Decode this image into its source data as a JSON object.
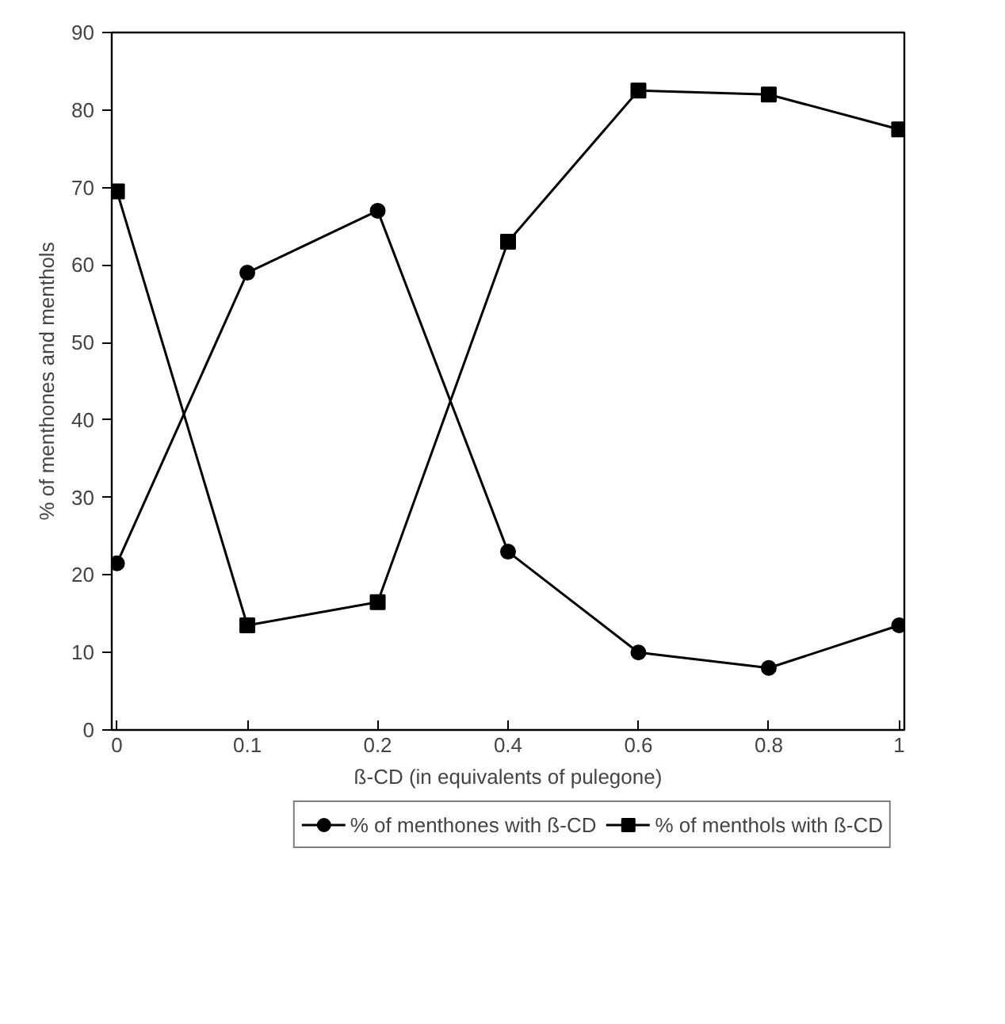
{
  "chart_data": {
    "type": "line",
    "xlabel": "ß-CD (in equivalents of pulegone)",
    "ylabel": "% of menthones and menthols",
    "categories": [
      "0",
      "0.1",
      "0.2",
      "0.4",
      "0.6",
      "0.8",
      "1"
    ],
    "series": [
      {
        "name": "% of menthones with ß-CD",
        "color": "#000000",
        "marker": "circle",
        "values": [
          21.5,
          59,
          67,
          23,
          10,
          8,
          13.5
        ]
      },
      {
        "name": "% of menthols with ß-CD",
        "color": "#000000",
        "marker": "square",
        "values": [
          69.5,
          13.5,
          16.5,
          63,
          82.5,
          82,
          77.5
        ]
      }
    ],
    "ylim": [
      0,
      90
    ],
    "yticks": [
      0,
      10,
      20,
      30,
      40,
      50,
      60,
      70,
      80,
      90
    ],
    "grid": false,
    "legend": "bottom",
    "line_style": "solid"
  }
}
